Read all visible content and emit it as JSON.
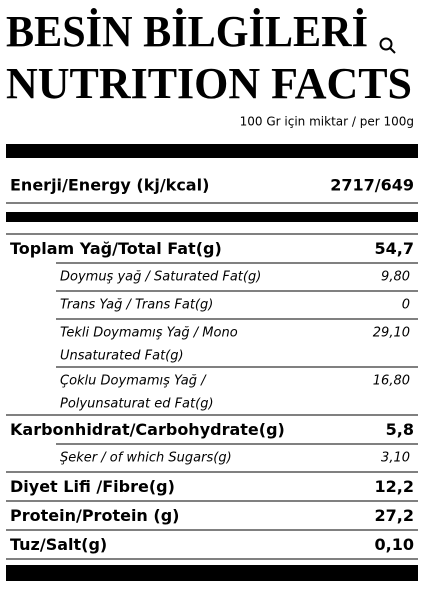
{
  "header": {
    "title_tr": "BESİN BİLGİLERİ",
    "title_en": "NUTRITION FACTS",
    "subtitle": "100 Gr için miktar / per 100g"
  },
  "energy": {
    "label": "Enerji/Energy (kj/kcal)",
    "value": "2717/649"
  },
  "rows": [
    {
      "label": "Toplam Yağ/Total Fat(g)",
      "value": "54,7",
      "subrows": [
        {
          "label": [
            "Doymuş yağ / Saturated Fat(g)"
          ],
          "value": "9,80"
        },
        {
          "label": [
            "Trans Yağ / Trans Fat(g)"
          ],
          "value": "0"
        },
        {
          "label": [
            "Tekli Doymamış Yağ / Mono",
            "Unsaturated Fat(g)"
          ],
          "value": "29,10"
        },
        {
          "label": [
            "Çoklu Doymamış Yağ /",
            "Polyunsaturat ed Fat(g)"
          ],
          "value": "16,80"
        }
      ]
    },
    {
      "label": "Karbonhidrat/Carbohydrate(g)",
      "value": "5,8",
      "subrows": [
        {
          "label": [
            "Şeker / of which Sugars(g)"
          ],
          "value": "3,10"
        }
      ]
    },
    {
      "label": "Diyet Lifi /Fibre(g)",
      "value": "12,2",
      "subrows": []
    },
    {
      "label": "Protein/Protein (g)",
      "value": "27,2",
      "subrows": []
    },
    {
      "label": "Tuz/Salt(g)",
      "value": "0,10",
      "subrows": []
    }
  ]
}
